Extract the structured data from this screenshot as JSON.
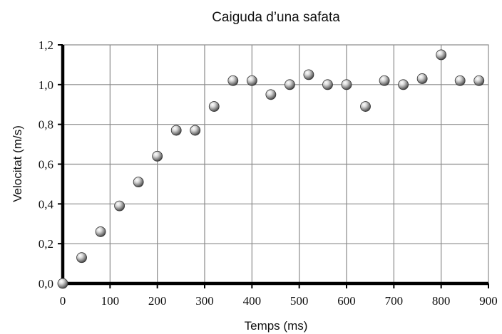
{
  "chart_data": {
    "type": "scatter",
    "title": "Caiguda d’una safata",
    "xlabel": "Temps (ms)",
    "ylabel": "Velocitat (m/s)",
    "xlim": [
      0,
      900
    ],
    "ylim": [
      0,
      1.2
    ],
    "x_ticks": [
      "0",
      "100",
      "200",
      "300",
      "400",
      "500",
      "600",
      "700",
      "800",
      "900"
    ],
    "y_ticks": [
      "0,0",
      "0,2",
      "0,4",
      "0,6",
      "0,8",
      "1,0",
      "1,2"
    ],
    "grid": true,
    "legend": "none",
    "marker_color": "#9a9a9a",
    "series": [
      {
        "x": [
          0,
          40,
          80,
          120,
          160,
          200,
          240,
          280,
          320,
          360,
          400,
          440,
          480,
          520,
          560,
          600,
          640,
          680,
          720,
          760,
          800,
          840,
          880
        ],
        "y": [
          0.0,
          0.13,
          0.26,
          0.39,
          0.51,
          0.64,
          0.77,
          0.77,
          0.89,
          1.02,
          1.02,
          0.95,
          1.0,
          1.05,
          1.0,
          1.0,
          0.89,
          1.02,
          1.0,
          1.03,
          1.15,
          1.02,
          1.02
        ]
      }
    ]
  }
}
